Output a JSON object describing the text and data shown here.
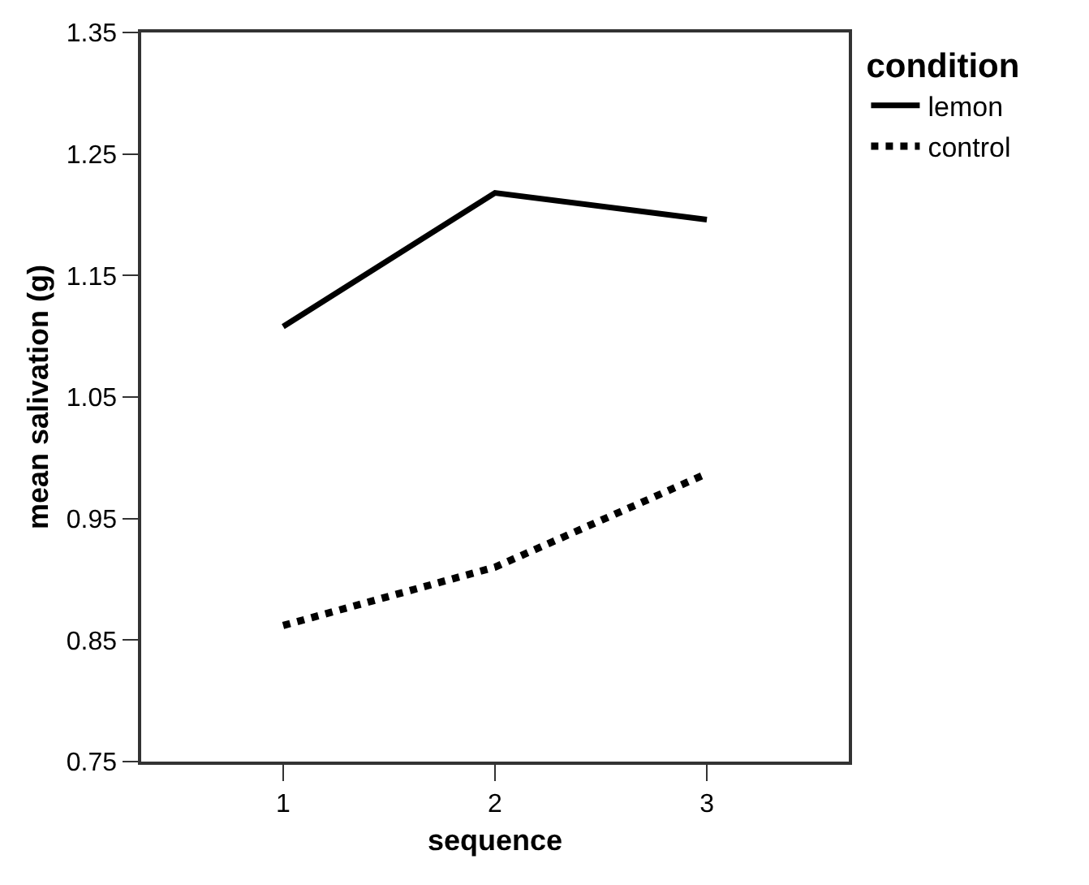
{
  "chart_data": {
    "type": "line",
    "xlabel": "sequence",
    "ylabel": "mean salivation (g)",
    "legend_title": "condition",
    "x": [
      1,
      2,
      3
    ],
    "series": [
      {
        "name": "lemon",
        "color": "#000000",
        "values": [
          1.108,
          1.218,
          1.196
        ],
        "line_style": "solid"
      },
      {
        "name": "control",
        "color": "#000000",
        "values": [
          0.862,
          0.91,
          0.987
        ],
        "line_style": "dotted"
      }
    ],
    "xlim": [
      0.33,
      3.67
    ],
    "xticks": [
      1,
      2,
      3
    ],
    "ylim": [
      0.75,
      1.35
    ],
    "yticks": [
      {
        "value": 0.75,
        "label": "0.75"
      },
      {
        "value": 0.85,
        "label": "0.85"
      },
      {
        "value": 0.95,
        "label": "0.95"
      },
      {
        "value": 1.05,
        "label": "1.05"
      },
      {
        "value": 1.15,
        "label": "1.15"
      },
      {
        "value": 1.25,
        "label": "1.25"
      },
      {
        "value": 1.35,
        "label": "1.35"
      }
    ],
    "grid": false,
    "legend": "top right",
    "marker": "none"
  }
}
